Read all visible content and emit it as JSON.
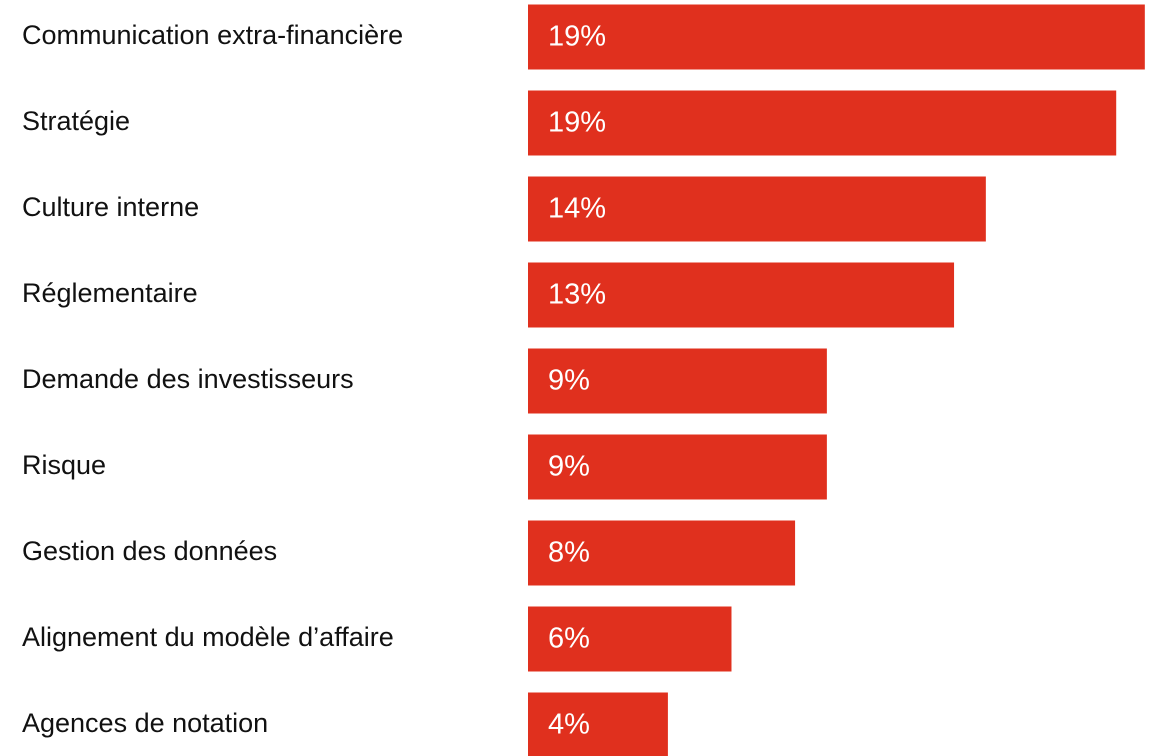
{
  "chart_data": {
    "type": "barh",
    "categories": [
      "Communication extra-financière",
      "Stratégie",
      "Culture interne",
      "Réglementaire",
      "Demande des investisseurs",
      "Risque",
      "Gestion des données",
      "Alignement du modèle d’affaire",
      "Agences de notation"
    ],
    "values": [
      19.4,
      18.5,
      14.4,
      13.4,
      9.4,
      9.4,
      8.4,
      6.4,
      4.4
    ],
    "value_labels": [
      "19%",
      "19%",
      "14%",
      "13%",
      "9%",
      "9%",
      "8%",
      "6%",
      "4%"
    ],
    "color": "#e0301e",
    "xlim": [
      0,
      19.5
    ]
  }
}
